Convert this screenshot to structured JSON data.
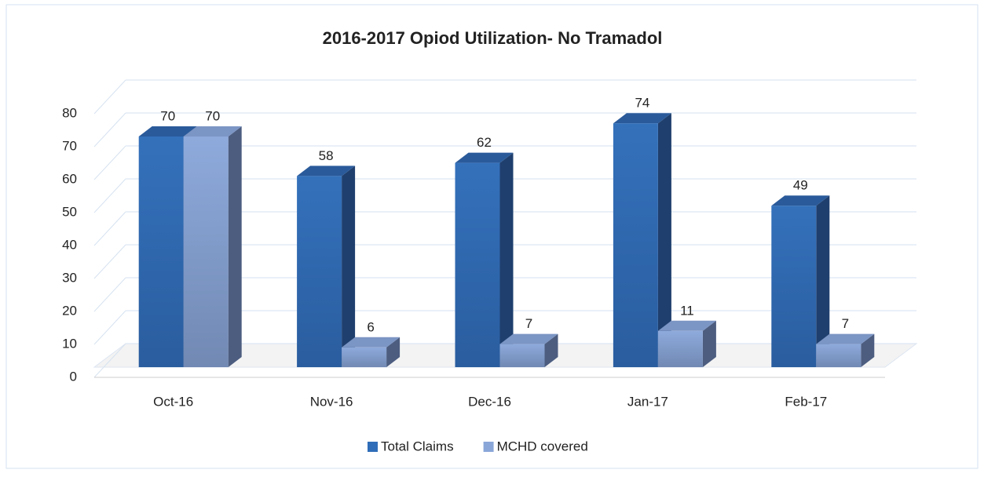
{
  "chart_data": {
    "type": "bar3d",
    "title": "2016-2017 Opiod Utilization- No Tramadol",
    "categories": [
      "Oct-16",
      "Nov-16",
      "Dec-16",
      "Jan-17",
      "Feb-17"
    ],
    "series": [
      {
        "name": "Total Claims",
        "color": "#2f6db8",
        "values": [
          70,
          58,
          62,
          74,
          49
        ]
      },
      {
        "name": "MCHD covered",
        "color": "#8aa6d8",
        "values": [
          70,
          6,
          7,
          11,
          7
        ]
      }
    ],
    "ylim": [
      0,
      80
    ],
    "yticks": [
      0,
      10,
      20,
      30,
      40,
      50,
      60,
      70,
      80
    ],
    "grid": true,
    "legend": "bottom"
  }
}
